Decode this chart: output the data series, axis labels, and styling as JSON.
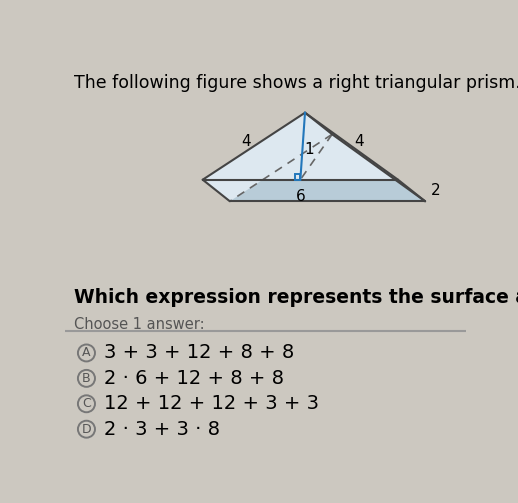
{
  "title": "The following figure shows a right triangular prism.",
  "title_fontsize": 12.5,
  "question": "Which expression represents the surface area of the prism?",
  "question_fontsize": 13.5,
  "choose_label": "Choose 1 answer:",
  "choose_fontsize": 10.5,
  "bg_color": "#ccc8c0",
  "answers": [
    {
      "label": "A",
      "text": "3 + 3 + 12 + 8 + 8"
    },
    {
      "label": "B",
      "text": "2 · 6 + 12 + 8 + 8"
    },
    {
      "label": "C",
      "text": "12 + 12 + 12 + 3 + 3"
    },
    {
      "label": "D",
      "text": "2 · 3 + 3 · 8"
    }
  ],
  "prism_fill_front": "#dde8f0",
  "prism_fill_top_left": "#dde8f0",
  "prism_fill_top_right": "#c8d8e4",
  "prism_fill_bottom": "#b8ccd8",
  "prism_edge_color": "#444444",
  "prism_dashed_color": "#666666",
  "height_line_color": "#2277bb",
  "right_angle_color": "#2277bb",
  "answer_fontsize": 14,
  "label_fontsize": 11
}
